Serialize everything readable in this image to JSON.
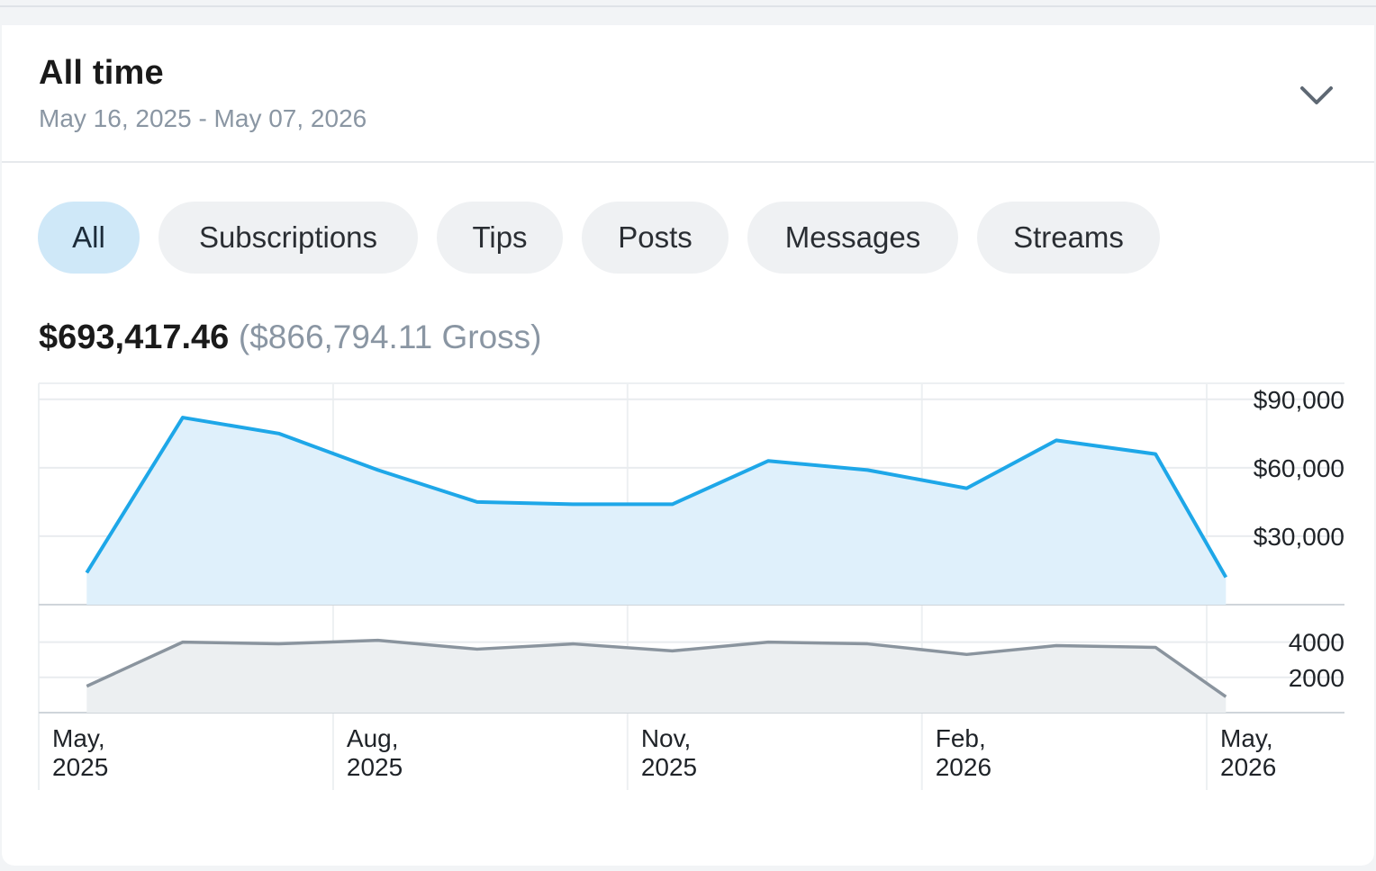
{
  "period": {
    "title": "All time",
    "range": "May 16, 2025 - May 07, 2026",
    "chevron_icon": "chevron-down-icon"
  },
  "tabs": [
    {
      "label": "All",
      "active": true
    },
    {
      "label": "Subscriptions",
      "active": false
    },
    {
      "label": "Tips",
      "active": false
    },
    {
      "label": "Posts",
      "active": false
    },
    {
      "label": "Messages",
      "active": false
    },
    {
      "label": "Streams",
      "active": false
    }
  ],
  "totals": {
    "net": "$693,417.46",
    "gross": "($866,794.11 Gross)"
  },
  "colors": {
    "earnings_line": "#1ea7e8",
    "earnings_fill": "#dff0fb",
    "count_line": "#8a949e",
    "count_fill": "#eceff1",
    "active_tab": "#cfe8f8",
    "tab": "#eff1f3"
  },
  "chart_data": [
    {
      "type": "area",
      "series_name": "earnings",
      "x": [
        "2025-05-16",
        "2025-06-15",
        "2025-07-15",
        "2025-08-15",
        "2025-09-15",
        "2025-10-15",
        "2025-11-15",
        "2025-12-15",
        "2026-01-15",
        "2026-02-15",
        "2026-03-15",
        "2026-04-15",
        "2026-05-07"
      ],
      "values": [
        14000,
        82000,
        75000,
        59000,
        45000,
        44000,
        44000,
        63000,
        59000,
        51000,
        72000,
        66000,
        12000
      ],
      "yticks": [
        30000,
        60000,
        90000
      ],
      "ytick_labels": [
        "$30,000",
        "$60,000",
        "$90,000"
      ],
      "ylim": [
        0,
        97000
      ],
      "grid": true
    },
    {
      "type": "area",
      "series_name": "count",
      "x": [
        "2025-05-16",
        "2025-06-15",
        "2025-07-15",
        "2025-08-15",
        "2025-09-15",
        "2025-10-15",
        "2025-11-15",
        "2025-12-15",
        "2026-01-15",
        "2026-02-15",
        "2026-03-15",
        "2026-04-15",
        "2026-05-07"
      ],
      "values": [
        1500,
        4000,
        3900,
        4100,
        3600,
        3900,
        3500,
        4000,
        3900,
        3300,
        3800,
        3700,
        900
      ],
      "yticks": [
        2000,
        4000
      ],
      "ytick_labels": [
        "2000",
        "4000"
      ],
      "ylim": [
        0,
        5000
      ],
      "grid": true
    }
  ],
  "x_axis": {
    "tick_labels": [
      {
        "line1": "May,",
        "line2": "2025"
      },
      {
        "line1": "Aug,",
        "line2": "2025"
      },
      {
        "line1": "Nov,",
        "line2": "2025"
      },
      {
        "line1": "Feb,",
        "line2": "2026"
      },
      {
        "line1": "May,",
        "line2": "2026"
      }
    ]
  }
}
